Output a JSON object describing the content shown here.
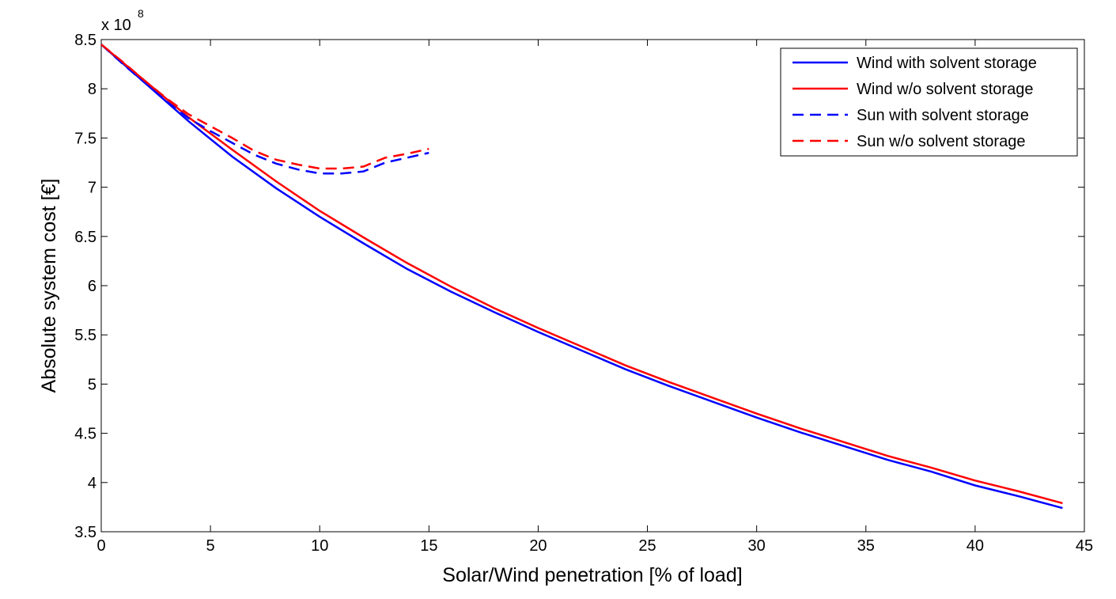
{
  "chart_data": {
    "type": "line",
    "xlabel": "Solar/Wind penetration [% of load]",
    "ylabel": "Absolute system cost [€]",
    "y_multiplier_label": "x 10",
    "y_multiplier_exponent": "8",
    "xlim": [
      0,
      45
    ],
    "ylim": [
      3.5,
      8.5
    ],
    "xticks": [
      "0",
      "5",
      "10",
      "15",
      "20",
      "25",
      "30",
      "35",
      "40",
      "45"
    ],
    "yticks": [
      "3.5",
      "4",
      "4.5",
      "5",
      "5.5",
      "6",
      "6.5",
      "7",
      "7.5",
      "8",
      "8.5"
    ],
    "grid": false,
    "legend_position": "top-right",
    "series": [
      {
        "name": "Wind with solvent storage",
        "color": "#0000ff",
        "dash": "solid",
        "x": [
          0,
          2,
          4,
          6,
          8,
          10,
          12,
          14,
          16,
          18,
          20,
          22,
          24,
          26,
          28,
          30,
          32,
          34,
          36,
          38,
          40,
          42,
          44
        ],
        "y": [
          8.45,
          8.06,
          7.67,
          7.31,
          6.99,
          6.7,
          6.43,
          6.17,
          5.94,
          5.73,
          5.53,
          5.34,
          5.15,
          4.98,
          4.82,
          4.66,
          4.51,
          4.37,
          4.23,
          4.11,
          3.97,
          3.86,
          3.74
        ]
      },
      {
        "name": "Wind w/o solvent storage",
        "color": "#ff0000",
        "dash": "solid",
        "x": [
          0,
          2,
          4,
          6,
          8,
          10,
          12,
          14,
          16,
          18,
          20,
          22,
          24,
          26,
          28,
          30,
          32,
          34,
          36,
          38,
          40,
          42,
          44
        ],
        "y": [
          8.45,
          8.08,
          7.71,
          7.38,
          7.06,
          6.76,
          6.49,
          6.23,
          5.99,
          5.77,
          5.57,
          5.38,
          5.19,
          5.02,
          4.86,
          4.7,
          4.55,
          4.41,
          4.27,
          4.15,
          4.02,
          3.91,
          3.79
        ]
      },
      {
        "name": "Sun with solvent storage",
        "color": "#0000ff",
        "dash": "dashed",
        "x": [
          0,
          1,
          2,
          3,
          4,
          5,
          6,
          7,
          8,
          9,
          10,
          11,
          12,
          13,
          14,
          15
        ],
        "y": [
          8.45,
          8.25,
          8.06,
          7.87,
          7.7,
          7.57,
          7.45,
          7.33,
          7.24,
          7.18,
          7.14,
          7.14,
          7.16,
          7.25,
          7.3,
          7.35
        ]
      },
      {
        "name": "Sun w/o solvent storage",
        "color": "#ff0000",
        "dash": "dashed",
        "x": [
          0,
          1,
          2,
          3,
          4,
          5,
          6,
          7,
          8,
          9,
          10,
          11,
          12,
          13,
          14,
          15
        ],
        "y": [
          8.45,
          8.27,
          8.08,
          7.9,
          7.74,
          7.62,
          7.5,
          7.37,
          7.28,
          7.23,
          7.19,
          7.19,
          7.21,
          7.3,
          7.34,
          7.39
        ]
      }
    ]
  }
}
